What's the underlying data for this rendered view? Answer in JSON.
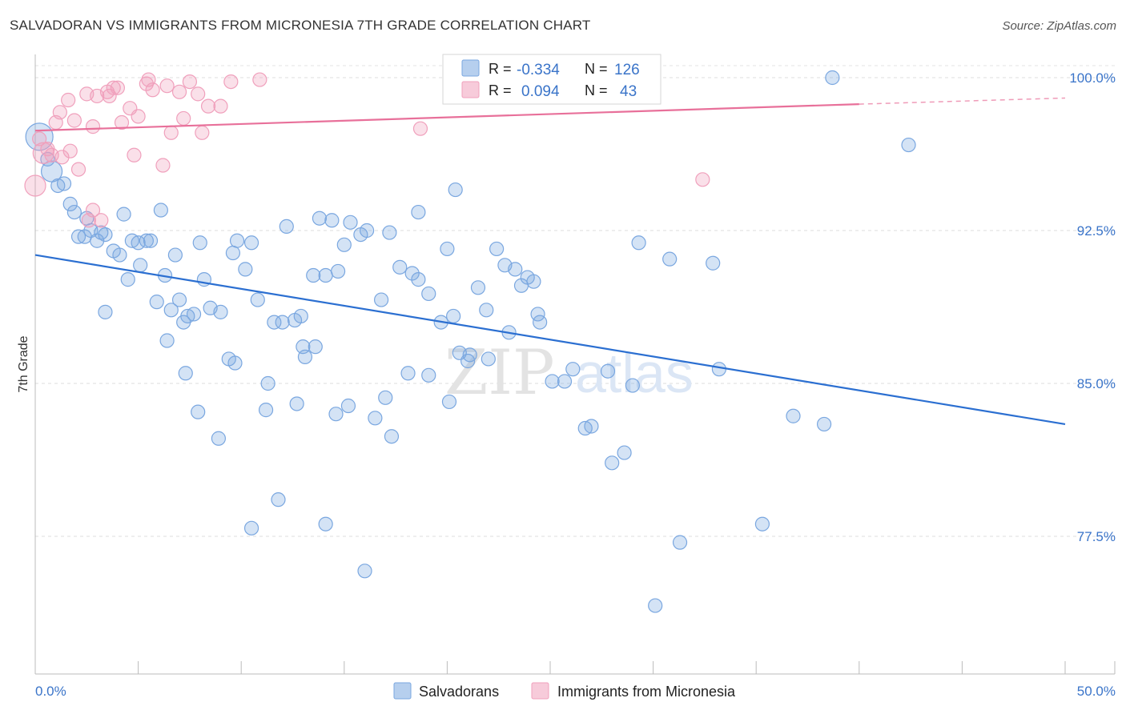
{
  "header": {
    "title": "SALVADORAN VS IMMIGRANTS FROM MICRONESIA 7TH GRADE CORRELATION CHART",
    "source": "Source: ZipAtlas.com"
  },
  "watermark": {
    "zip": "ZIP",
    "atlas": "atlas"
  },
  "legend": {
    "rows": [
      {
        "r_label": "R =",
        "r_value": "-0.334",
        "n_label": "N =",
        "n_value": "126",
        "color": "#7aa7e0"
      },
      {
        "r_label": "R =",
        "r_value": "0.094",
        "n_label": "N =",
        "n_value": "43",
        "color": "#f0a0bc"
      }
    ]
  },
  "bottom_legend": [
    {
      "label": "Salvadorans",
      "color": "#7aa7e0"
    },
    {
      "label": "Immigrants from Micronesia",
      "color": "#f0a0bc"
    }
  ],
  "chart_data": {
    "type": "scatter",
    "title": "SALVADORAN VS IMMIGRANTS FROM MICRONESIA 7TH GRADE CORRELATION CHART",
    "ylabel": "7th Grade",
    "xlabel": "",
    "xlim": [
      0,
      50
    ],
    "ylim": [
      70.0,
      100.7
    ],
    "x_tick_labels": [
      "0.0%",
      "50.0%"
    ],
    "y_ticks": [
      77.5,
      85.0,
      92.5,
      100.0
    ],
    "y_tick_labels": [
      "77.5%",
      "85.0%",
      "92.5%",
      "100.0%"
    ],
    "grid": true,
    "series": [
      {
        "name": "Salvadorans",
        "color": "#7aa7e0",
        "line_color": "#2b6fd1",
        "trend": {
          "x": [
            0,
            50
          ],
          "y": [
            91.3,
            83.0
          ]
        },
        "points": [
          [
            0.2,
            97.1,
            3
          ],
          [
            0.8,
            95.4,
            2
          ],
          [
            0.6,
            96.0,
            1
          ],
          [
            1.1,
            94.7,
            1
          ],
          [
            1.4,
            94.8,
            1
          ],
          [
            1.7,
            93.8,
            1
          ],
          [
            1.9,
            93.4,
            1
          ],
          [
            2.5,
            93.1,
            1
          ],
          [
            2.7,
            92.5,
            1
          ],
          [
            2.1,
            92.2,
            1
          ],
          [
            2.4,
            92.2,
            1
          ],
          [
            3.0,
            92.0,
            1
          ],
          [
            3.2,
            92.4,
            1
          ],
          [
            3.4,
            92.3,
            1
          ],
          [
            3.8,
            91.5,
            1
          ],
          [
            4.1,
            91.3,
            1
          ],
          [
            4.3,
            93.3,
            1
          ],
          [
            4.5,
            90.1,
            1
          ],
          [
            4.7,
            92.0,
            1
          ],
          [
            5.0,
            91.9,
            1
          ],
          [
            5.1,
            90.8,
            1
          ],
          [
            5.4,
            92.0,
            1
          ],
          [
            5.6,
            92.0,
            1
          ],
          [
            5.9,
            89.0,
            1
          ],
          [
            6.1,
            93.5,
            1
          ],
          [
            6.3,
            90.3,
            1
          ],
          [
            6.6,
            88.6,
            1
          ],
          [
            6.8,
            91.3,
            1
          ],
          [
            7.0,
            89.1,
            1
          ],
          [
            7.2,
            88.0,
            1
          ],
          [
            7.4,
            88.3,
            1
          ],
          [
            7.7,
            88.4,
            1
          ],
          [
            8.0,
            91.9,
            1
          ],
          [
            8.2,
            90.1,
            1
          ],
          [
            8.5,
            88.7,
            1
          ],
          [
            9.0,
            88.5,
            1
          ],
          [
            9.6,
            91.4,
            1
          ],
          [
            9.8,
            92.0,
            1
          ],
          [
            10.2,
            90.6,
            1
          ],
          [
            10.5,
            91.9,
            1
          ],
          [
            10.8,
            89.1,
            1
          ],
          [
            11.3,
            85.0,
            1
          ],
          [
            11.6,
            88.0,
            1
          ],
          [
            12.0,
            88.0,
            1
          ],
          [
            12.2,
            92.7,
            1
          ],
          [
            12.6,
            88.1,
            1
          ],
          [
            12.9,
            88.3,
            1
          ],
          [
            13.0,
            86.8,
            1
          ],
          [
            13.5,
            90.3,
            1
          ],
          [
            13.8,
            93.1,
            1
          ],
          [
            14.1,
            90.3,
            1
          ],
          [
            14.4,
            93.0,
            1
          ],
          [
            14.7,
            90.5,
            1
          ],
          [
            15.0,
            91.8,
            1
          ],
          [
            15.3,
            92.9,
            1
          ],
          [
            15.8,
            92.3,
            1
          ],
          [
            16.1,
            92.5,
            1
          ],
          [
            16.8,
            89.1,
            1
          ],
          [
            17.2,
            92.4,
            1
          ],
          [
            17.7,
            90.7,
            1
          ],
          [
            18.3,
            90.4,
            1
          ],
          [
            18.6,
            90.1,
            1
          ],
          [
            19.1,
            89.4,
            1
          ],
          [
            19.7,
            88.0,
            1
          ],
          [
            20.0,
            91.6,
            1
          ],
          [
            20.3,
            88.3,
            1
          ],
          [
            20.6,
            86.5,
            1
          ],
          [
            21.0,
            86.1,
            1
          ],
          [
            21.5,
            89.7,
            1
          ],
          [
            21.9,
            88.6,
            1
          ],
          [
            22.4,
            91.6,
            1
          ],
          [
            22.8,
            90.8,
            1
          ],
          [
            23.3,
            90.6,
            1
          ],
          [
            23.6,
            89.8,
            1
          ],
          [
            23.9,
            90.2,
            1
          ],
          [
            24.2,
            90.0,
            1
          ],
          [
            24.5,
            88.0,
            1
          ],
          [
            25.1,
            85.1,
            1
          ],
          [
            25.7,
            85.1,
            1
          ],
          [
            26.1,
            85.7,
            1
          ],
          [
            26.7,
            82.8,
            1
          ],
          [
            27.0,
            82.9,
            1
          ],
          [
            27.8,
            85.6,
            1
          ],
          [
            28.0,
            81.1,
            1
          ],
          [
            28.6,
            81.6,
            1
          ],
          [
            29.0,
            84.9,
            1
          ],
          [
            29.3,
            91.9,
            1
          ],
          [
            30.1,
            74.1,
            1
          ],
          [
            30.8,
            91.1,
            1
          ],
          [
            31.3,
            77.2,
            1
          ],
          [
            32.9,
            90.9,
            1
          ],
          [
            33.2,
            85.7,
            1
          ],
          [
            35.3,
            78.1,
            1
          ],
          [
            36.8,
            83.4,
            1
          ],
          [
            38.3,
            83.0,
            1
          ],
          [
            38.7,
            100.0,
            1
          ],
          [
            42.4,
            96.7,
            1
          ],
          [
            3.4,
            88.5,
            1
          ],
          [
            6.4,
            87.1,
            1
          ],
          [
            7.3,
            85.5,
            1
          ],
          [
            7.9,
            83.6,
            1
          ],
          [
            8.9,
            82.3,
            1
          ],
          [
            9.4,
            86.2,
            1
          ],
          [
            9.7,
            86.0,
            1
          ],
          [
            10.5,
            77.9,
            1
          ],
          [
            11.2,
            83.7,
            1
          ],
          [
            11.8,
            79.3,
            1
          ],
          [
            12.7,
            84.0,
            1
          ],
          [
            13.1,
            86.3,
            1
          ],
          [
            13.6,
            86.8,
            1
          ],
          [
            14.1,
            78.1,
            1
          ],
          [
            14.6,
            83.5,
            1
          ],
          [
            15.2,
            83.9,
            1
          ],
          [
            16.0,
            75.8,
            1
          ],
          [
            16.5,
            83.3,
            1
          ],
          [
            17.0,
            84.3,
            1
          ],
          [
            17.3,
            82.4,
            1
          ],
          [
            18.1,
            85.5,
            1
          ],
          [
            19.1,
            85.4,
            1
          ],
          [
            20.1,
            84.1,
            1
          ],
          [
            21.1,
            86.4,
            1
          ],
          [
            22.0,
            86.2,
            1
          ],
          [
            23.0,
            87.5,
            1
          ],
          [
            24.4,
            88.4,
            1
          ],
          [
            18.6,
            93.4,
            1
          ],
          [
            20.4,
            94.5,
            1
          ]
        ]
      },
      {
        "name": "Immigrants from Micronesia",
        "color": "#f0a0bc",
        "line_color": "#e8709a",
        "trend": {
          "x": [
            0,
            40
          ],
          "y": [
            97.4,
            98.7
          ],
          "dashed_to": {
            "x": 50,
            "y": 99.0
          }
        },
        "points": [
          [
            0.0,
            94.7,
            2
          ],
          [
            0.4,
            96.3,
            2
          ],
          [
            0.6,
            96.5,
            1
          ],
          [
            0.8,
            96.2,
            1
          ],
          [
            0.2,
            97.0,
            1
          ],
          [
            1.0,
            97.8,
            1
          ],
          [
            1.2,
            98.3,
            1
          ],
          [
            1.6,
            98.9,
            1
          ],
          [
            1.9,
            97.9,
            1
          ],
          [
            2.5,
            99.2,
            1
          ],
          [
            2.8,
            97.6,
            1
          ],
          [
            3.0,
            99.1,
            1
          ],
          [
            3.5,
            99.3,
            1
          ],
          [
            3.6,
            99.1,
            1
          ],
          [
            3.8,
            99.5,
            1
          ],
          [
            4.0,
            99.5,
            1
          ],
          [
            4.2,
            97.8,
            1
          ],
          [
            4.6,
            98.5,
            1
          ],
          [
            5.0,
            98.1,
            1
          ],
          [
            5.4,
            99.7,
            1
          ],
          [
            5.5,
            99.9,
            1
          ],
          [
            6.2,
            95.7,
            1
          ],
          [
            6.4,
            99.6,
            1
          ],
          [
            6.6,
            97.3,
            1
          ],
          [
            7.0,
            99.3,
            1
          ],
          [
            7.2,
            98.0,
            1
          ],
          [
            7.5,
            99.8,
            1
          ],
          [
            7.9,
            99.2,
            1
          ],
          [
            8.1,
            97.3,
            1
          ],
          [
            8.4,
            98.6,
            1
          ],
          [
            9.0,
            98.6,
            1
          ],
          [
            9.5,
            99.8,
            1
          ],
          [
            10.9,
            99.9,
            1
          ],
          [
            1.3,
            96.1,
            1
          ],
          [
            1.7,
            96.4,
            1
          ],
          [
            2.1,
            95.5,
            1
          ],
          [
            2.6,
            93.0,
            1
          ],
          [
            2.8,
            93.5,
            1
          ],
          [
            3.2,
            93.0,
            1
          ],
          [
            4.8,
            96.2,
            1
          ],
          [
            18.7,
            97.5,
            1
          ],
          [
            32.4,
            95.0,
            1
          ],
          [
            5.7,
            99.4,
            1
          ]
        ]
      }
    ]
  }
}
